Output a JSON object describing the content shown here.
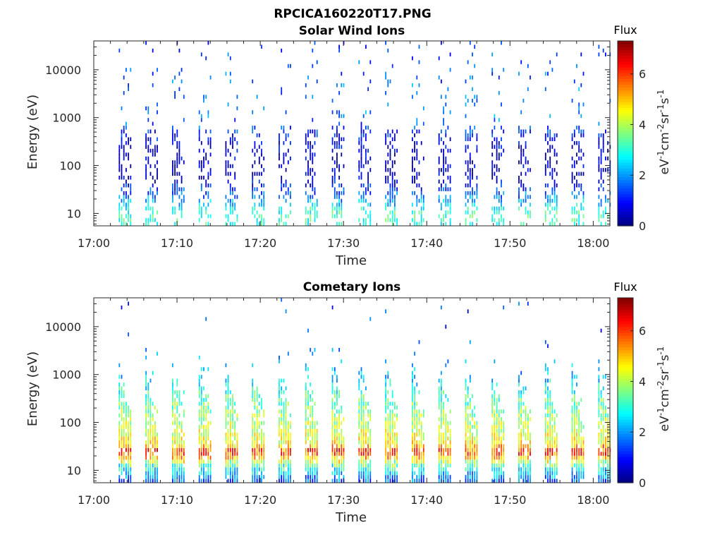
{
  "figure": {
    "filename": "RPCICA160220T17.PNG"
  },
  "chart_data": [
    {
      "type": "heatmap",
      "title": "Solar Wind Ions",
      "xlabel": "Time",
      "ylabel": "Energy (eV)",
      "xlim": [
        "17:00",
        "18:02"
      ],
      "ylim": [
        5.5,
        40000
      ],
      "yscale": "log",
      "x_ticks": [
        "17:00",
        "17:10",
        "17:20",
        "17:30",
        "17:40",
        "17:50",
        "18:00"
      ],
      "y_ticks": [
        "10",
        "100",
        "1000",
        "10000"
      ],
      "grid": false,
      "colorbar": {
        "title": "Flux",
        "label": "eV-1cm-2sr-1s-1",
        "clim": [
          0,
          7.3
        ],
        "ticks": [
          "0",
          "2",
          "4",
          "6"
        ],
        "colormap": "jet"
      },
      "scan_start_minutes": [
        3.0,
        6.2,
        9.4,
        12.6,
        15.8,
        19.0,
        22.2,
        25.4,
        28.6,
        31.8,
        35.0,
        38.2,
        41.4,
        44.6,
        47.8,
        51.0,
        54.2,
        57.4,
        60.6
      ],
      "typical_flux_by_energy": {
        "energy_eV": [
          6,
          10,
          20,
          50,
          100,
          300,
          1000,
          10000,
          35000
        ],
        "flux": [
          3.0,
          3.2,
          2.0,
          0.6,
          0.5,
          0.7,
          1.8,
          1.6,
          1.2
        ]
      }
    },
    {
      "type": "heatmap",
      "title": "Cometary Ions",
      "xlabel": "Time",
      "ylabel": "Energy (eV)",
      "xlim": [
        "17:00",
        "18:02"
      ],
      "ylim": [
        5.5,
        40000
      ],
      "yscale": "log",
      "x_ticks": [
        "17:00",
        "17:10",
        "17:20",
        "17:30",
        "17:40",
        "17:50",
        "18:00"
      ],
      "y_ticks": [
        "10",
        "100",
        "1000",
        "10000"
      ],
      "grid": false,
      "colorbar": {
        "title": "Flux",
        "label": "eV-1cm-2sr-1s-1",
        "clim": [
          0,
          7.3
        ],
        "ticks": [
          "0",
          "2",
          "4",
          "6"
        ],
        "colormap": "jet"
      },
      "scan_start_minutes": [
        3.0,
        6.2,
        9.4,
        12.6,
        15.8,
        19.0,
        22.2,
        25.4,
        28.6,
        31.8,
        35.0,
        38.2,
        41.4,
        44.6,
        47.8,
        51.0,
        54.2,
        57.4,
        60.6
      ],
      "typical_flux_by_energy": {
        "energy_eV": [
          6,
          12,
          18,
          25,
          35,
          60,
          100,
          300,
          600,
          1500,
          10000
        ],
        "flux": [
          1.5,
          3.0,
          5.0,
          6.2,
          4.6,
          4.3,
          4.0,
          3.3,
          2.6,
          2.0,
          1.2
        ]
      }
    }
  ]
}
